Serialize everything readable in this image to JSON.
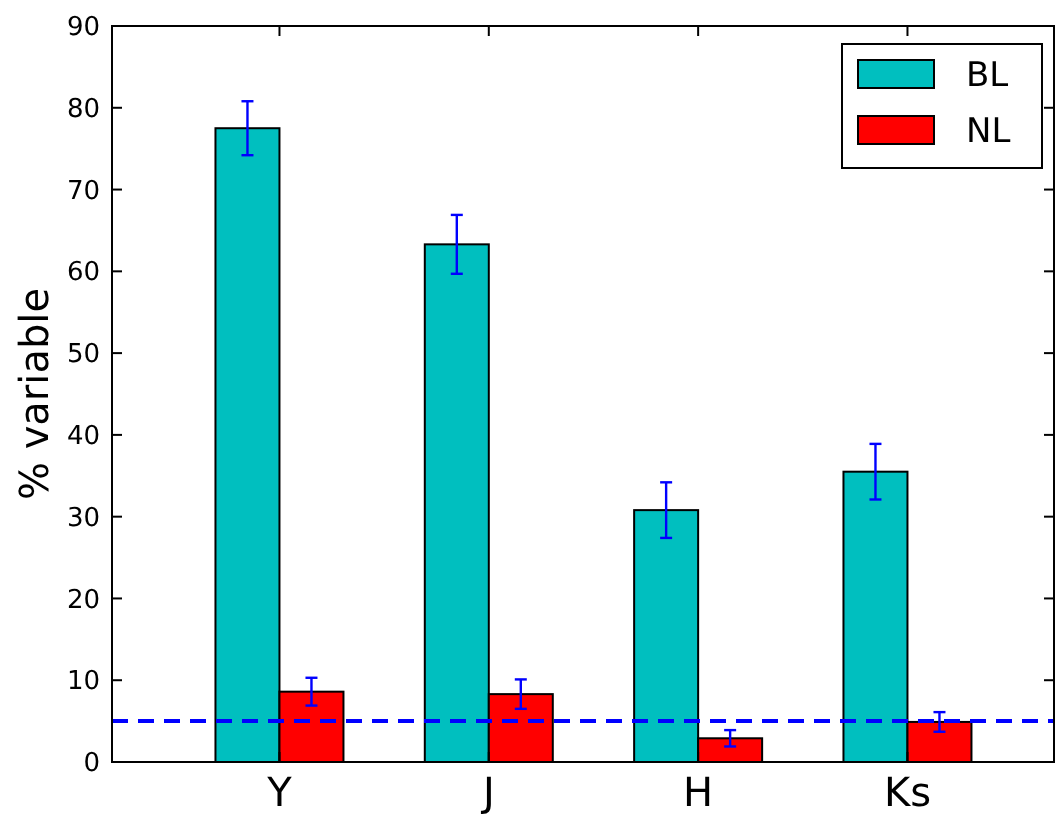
{
  "chart_data": {
    "type": "bar",
    "ylabel": "% variable",
    "categories": [
      "Y",
      "J",
      "H",
      "Ks"
    ],
    "series": [
      {
        "name": "BL",
        "color": "#00bfbf",
        "values": [
          77.5,
          63.3,
          30.8,
          35.5
        ],
        "errors": [
          3.3,
          3.6,
          3.4,
          3.4
        ]
      },
      {
        "name": "NL",
        "color": "#ff0000",
        "values": [
          8.6,
          8.3,
          2.9,
          4.9
        ],
        "errors": [
          1.7,
          1.8,
          1.0,
          1.2
        ]
      }
    ],
    "ylim": [
      0,
      90
    ],
    "yticks": [
      0,
      10,
      20,
      30,
      40,
      50,
      60,
      70,
      80,
      90
    ],
    "ref_lines": [
      {
        "axis": "y",
        "value": 5,
        "color": "#0000ff",
        "line_style": "dashed"
      }
    ],
    "legend": "top right",
    "grid": false
  }
}
